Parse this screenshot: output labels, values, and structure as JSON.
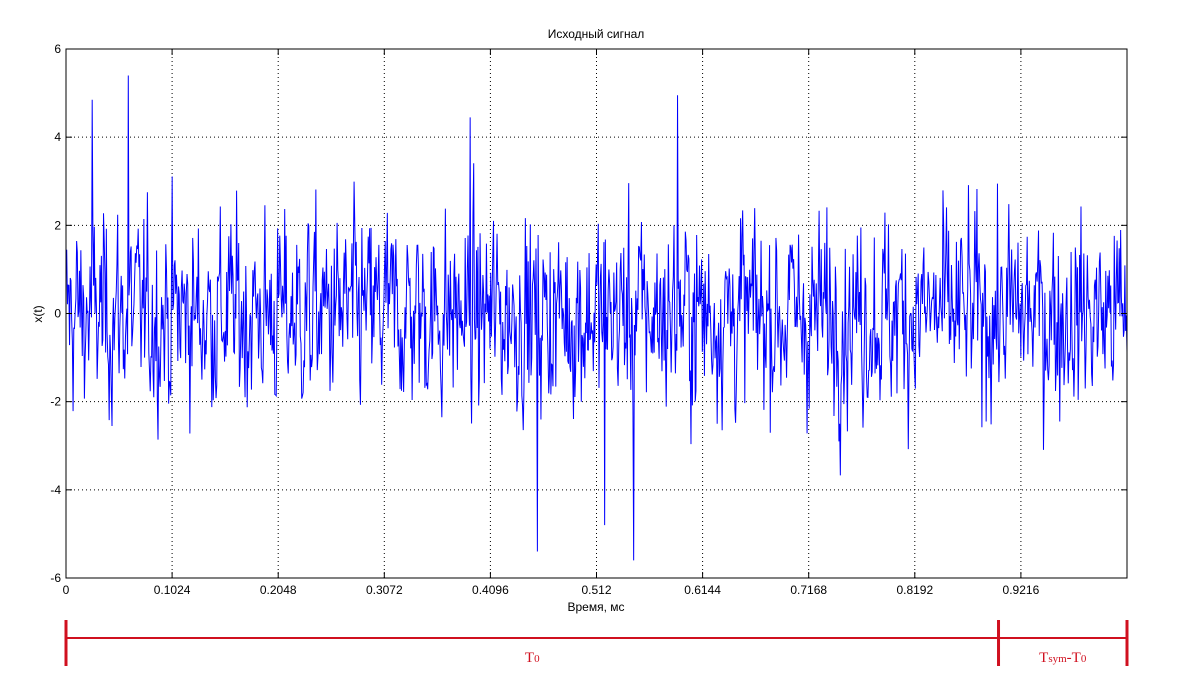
{
  "chart_data": {
    "type": "line",
    "title": "Исходный сигнал",
    "xlabel": "Время, мс",
    "ylabel": "x(t)",
    "xlim": [
      0,
      1.024
    ],
    "ylim": [
      -6,
      6
    ],
    "xticks": [
      0,
      0.1024,
      0.2048,
      0.3072,
      0.4096,
      0.512,
      0.6144,
      0.7168,
      0.8192,
      0.9216
    ],
    "xtick_labels": [
      "0",
      "0.1024",
      "0.2048",
      "0.3072",
      "0.4096",
      "0.512",
      "0.6144",
      "0.7168",
      "0.8192",
      "0.9216"
    ],
    "yticks": [
      -6,
      -4,
      -2,
      0,
      2,
      4,
      6
    ],
    "ytick_labels": [
      "-6",
      "-4",
      "-2",
      "0",
      "2",
      "4",
      "6"
    ],
    "grid": true,
    "series": [
      {
        "color": "#0000ff",
        "description": "random noise-like signal, amplitude mostly within ±3.5, extremes about +5.4 and -5.6",
        "x_range": [
          0,
          1.024
        ],
        "notable_points": [
          {
            "x": 0.025,
            "y": 4.85
          },
          {
            "x": 0.06,
            "y": 5.4
          },
          {
            "x": 0.455,
            "y": -5.4
          },
          {
            "x": 0.548,
            "y": -5.6
          },
          {
            "x": 0.59,
            "y": 4.95
          },
          {
            "x": 0.39,
            "y": 4.45
          },
          {
            "x": 0.52,
            "y": -4.8
          }
        ]
      }
    ],
    "annotations": [
      {
        "text": "T",
        "sub": "0",
        "from_x": 0,
        "to_x": 0.9,
        "color": "#d0101f"
      },
      {
        "text": "T",
        "sub": "sym",
        "text2": "-T",
        "sub2": "0",
        "from_x": 0.9,
        "to_x": 1.024,
        "color": "#d0101f"
      }
    ]
  }
}
